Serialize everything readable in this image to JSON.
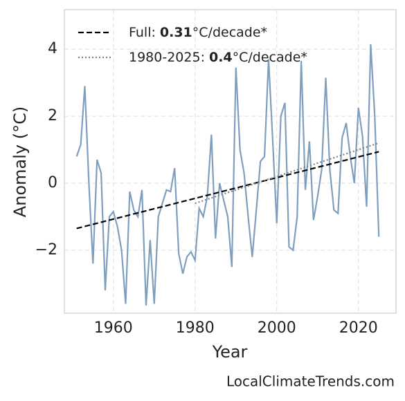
{
  "chart_data": {
    "type": "line",
    "xlabel": "Year",
    "ylabel": "Anomaly (°C)",
    "watermark": "LocalClimateTrends.com",
    "xlim": [
      1948,
      2029.2
    ],
    "ylim": [
      -3.88,
      5.18
    ],
    "xticks": [
      1960,
      1980,
      2000,
      2020
    ],
    "yticks": [
      {
        "value": -2,
        "label": "−2"
      },
      0,
      2,
      4
    ],
    "grid": true,
    "legend": "upper left",
    "series": [
      {
        "color": "#7f9fbf",
        "style": "solid",
        "x": [
          1951,
          1952,
          1953,
          1954,
          1955,
          1956,
          1957,
          1958,
          1959,
          1960,
          1961,
          1962,
          1963,
          1964,
          1965,
          1966,
          1967,
          1968,
          1969,
          1970,
          1971,
          1972,
          1973,
          1974,
          1975,
          1976,
          1977,
          1978,
          1979,
          1980,
          1981,
          1982,
          1983,
          1984,
          1985,
          1986,
          1987,
          1988,
          1989,
          1990,
          1991,
          1992,
          1993,
          1994,
          1995,
          1996,
          1997,
          1998,
          1999,
          2000,
          2001,
          2002,
          2003,
          2004,
          2005,
          2006,
          2007,
          2008,
          2009,
          2010,
          2011,
          2012,
          2013,
          2014,
          2015,
          2016,
          2017,
          2018,
          2019,
          2020,
          2021,
          2022,
          2023,
          2024,
          2025
        ],
        "values": [
          0.8,
          1.15,
          2.9,
          0.0,
          -2.4,
          0.7,
          0.3,
          -3.2,
          -1.0,
          -0.85,
          -1.3,
          -2.0,
          -3.6,
          -0.25,
          -0.8,
          -1.0,
          -0.2,
          -3.65,
          -1.7,
          -3.6,
          -1.0,
          -0.6,
          -0.2,
          -0.25,
          0.45,
          -2.1,
          -2.7,
          -2.2,
          -2.05,
          -2.3,
          -0.75,
          -1.0,
          -0.4,
          1.45,
          -1.65,
          0.0,
          -0.5,
          -1.0,
          -2.5,
          3.45,
          1.0,
          0.3,
          -1.0,
          -2.2,
          -0.8,
          0.65,
          0.8,
          3.7,
          1.3,
          -1.2,
          2.0,
          2.4,
          -1.9,
          -2.0,
          -1.0,
          3.65,
          -0.2,
          1.25,
          -1.1,
          -0.4,
          0.4,
          3.15,
          0.4,
          -0.8,
          -0.9,
          1.35,
          1.8,
          0.8,
          0.0,
          2.25,
          1.4,
          -0.7,
          4.15,
          2.0,
          -1.6
        ]
      },
      {
        "name": "Full:",
        "rate": 0.31,
        "unit": "°C/decade*",
        "color": "#000000",
        "style": "dashed",
        "x": [
          1951,
          2025
        ],
        "values": [
          -1.35,
          0.94
        ]
      },
      {
        "name": "1980-2025:",
        "rate": 0.4,
        "unit": "°C/decade*",
        "color": "#808080",
        "style": "dotted",
        "x": [
          1980,
          2025
        ],
        "values": [
          -0.6,
          1.2
        ]
      }
    ]
  }
}
